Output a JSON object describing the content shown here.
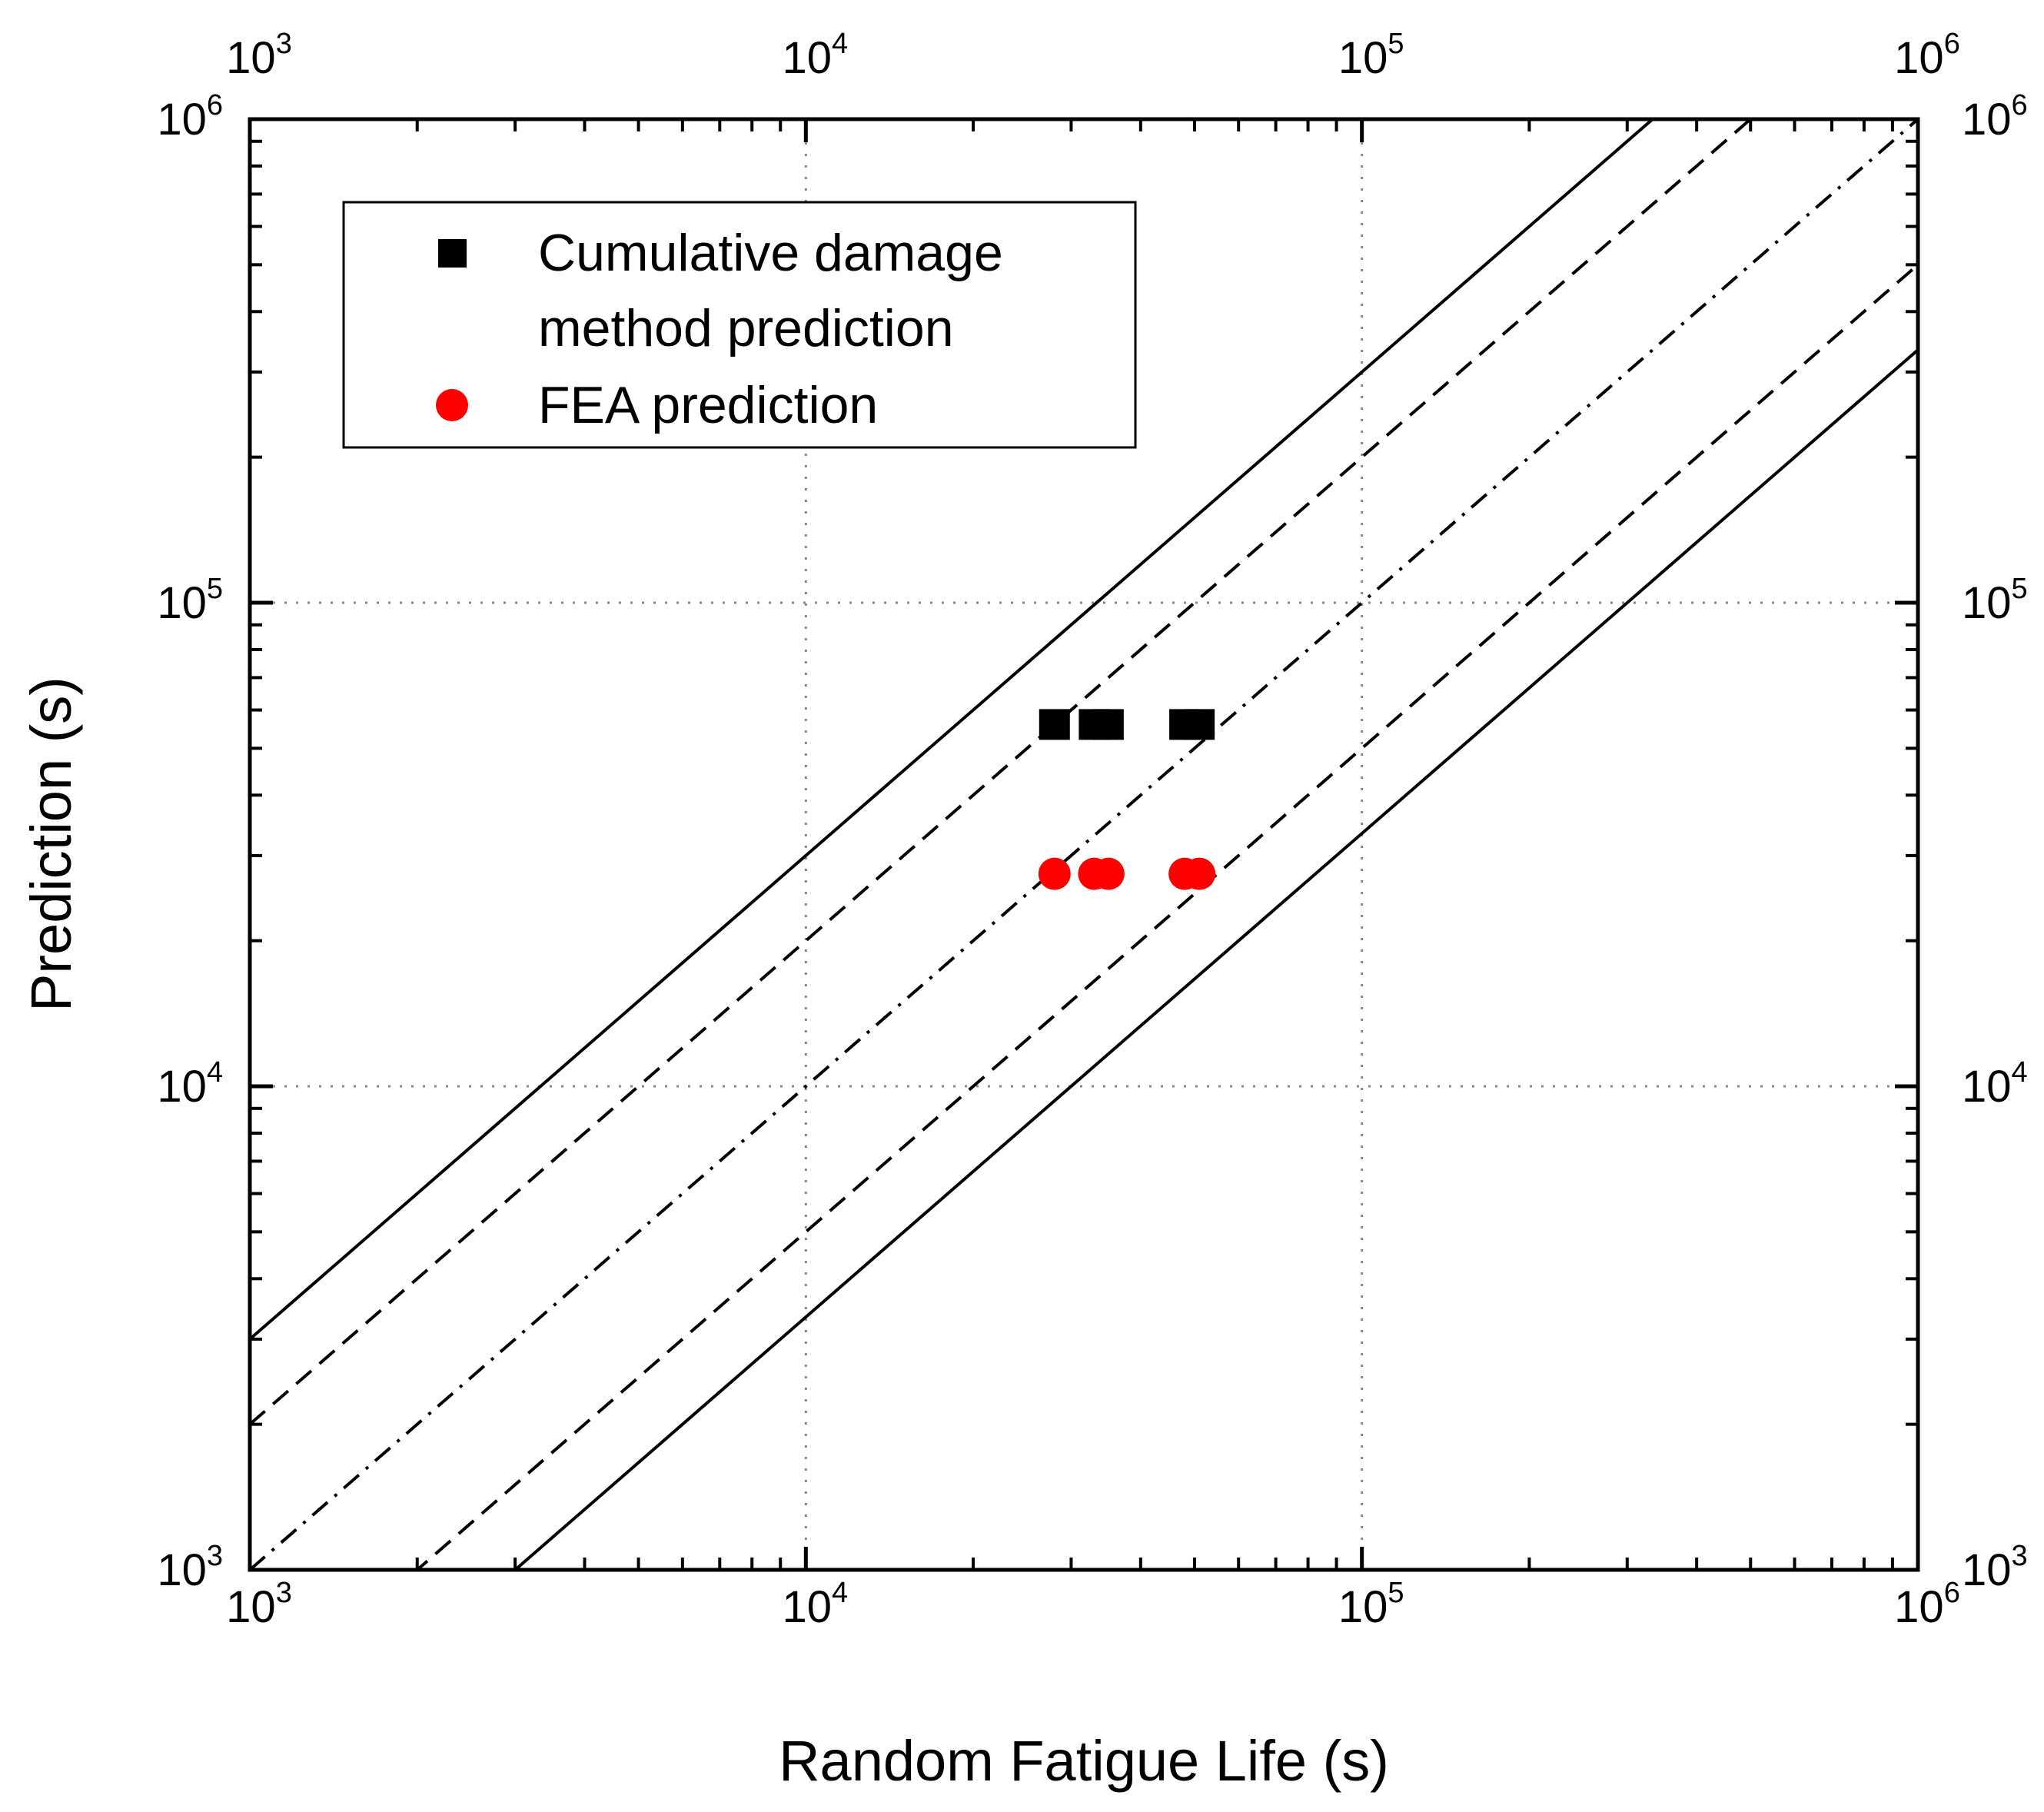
{
  "chart_data": {
    "type": "scatter",
    "title": "",
    "xlabel": "Random Fatigue Life (s)",
    "ylabel": "Prediction (s)",
    "xscale": "log",
    "yscale": "log",
    "xlim": [
      1000,
      1000000
    ],
    "ylim": [
      1000,
      1000000
    ],
    "grid": true,
    "decade_ticks": [
      {
        "base": "10",
        "exp": "3",
        "value": 1000
      },
      {
        "base": "10",
        "exp": "4",
        "value": 10000
      },
      {
        "base": "10",
        "exp": "5",
        "value": 100000
      },
      {
        "base": "10",
        "exp": "6",
        "value": 1000000
      }
    ],
    "series": [
      {
        "name": "Cumulative damage method prediction",
        "legend_lines": [
          "Cumulative damage",
          "method prediction"
        ],
        "marker": "square",
        "color": "#000000",
        "points": [
          {
            "x": 28000,
            "y": 56000
          },
          {
            "x": 33000,
            "y": 56000
          },
          {
            "x": 35000,
            "y": 56000
          },
          {
            "x": 48000,
            "y": 56000
          },
          {
            "x": 51000,
            "y": 56000
          }
        ]
      },
      {
        "name": "FEA prediction",
        "legend_lines": [
          "FEA prediction"
        ],
        "marker": "circle",
        "color": "#ff0000",
        "points": [
          {
            "x": 28000,
            "y": 27500
          },
          {
            "x": 33000,
            "y": 27500
          },
          {
            "x": 35000,
            "y": 27500
          },
          {
            "x": 48000,
            "y": 27500
          },
          {
            "x": 51000,
            "y": 27500
          }
        ]
      }
    ],
    "reference_lines": [
      {
        "name": "factor-3-upper",
        "factor": 3,
        "style": "solid"
      },
      {
        "name": "factor-2-upper",
        "factor": 2,
        "style": "dashed"
      },
      {
        "name": "unity",
        "factor": 1,
        "style": "dashdot"
      },
      {
        "name": "factor-2-lower",
        "factor": 0.5,
        "style": "dashed"
      },
      {
        "name": "factor-3-lower",
        "factor": 0.3333,
        "style": "solid"
      }
    ],
    "legend_position": "top-left"
  }
}
